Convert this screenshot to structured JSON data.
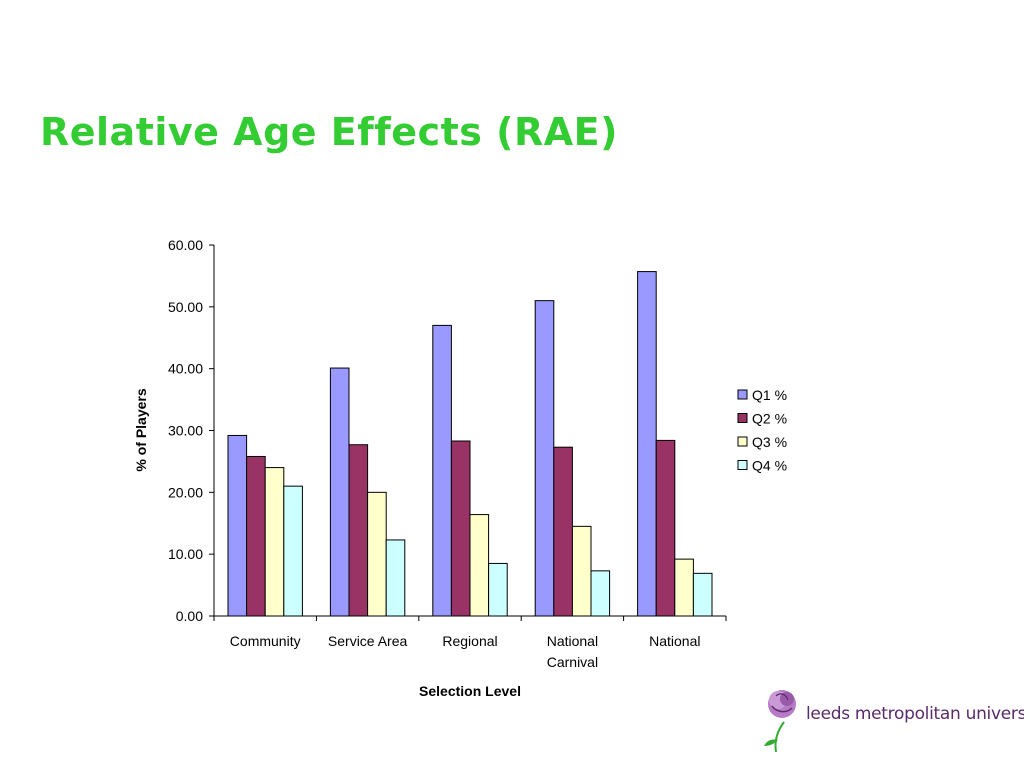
{
  "slide": {
    "title": "Relative Age Effects (RAE)"
  },
  "logo": {
    "text": "leeds metropolitan university"
  },
  "chart_data": {
    "type": "bar",
    "categories": [
      [
        "Community"
      ],
      [
        "Service Area"
      ],
      [
        "Regional"
      ],
      [
        "National",
        "Carnival"
      ],
      [
        "National"
      ]
    ],
    "series": [
      {
        "name": "Q1 %",
        "color": "#9999ff",
        "values": [
          29.2,
          40.1,
          47.0,
          51.0,
          55.7
        ]
      },
      {
        "name": "Q2 %",
        "color": "#993366",
        "values": [
          25.8,
          27.7,
          28.3,
          27.3,
          28.4
        ]
      },
      {
        "name": "Q3 %",
        "color": "#ffffcc",
        "values": [
          24.0,
          20.0,
          16.4,
          14.5,
          9.2
        ]
      },
      {
        "name": "Q4 %",
        "color": "#ccffff",
        "values": [
          21.0,
          12.3,
          8.5,
          7.3,
          6.9
        ]
      }
    ],
    "xlabel": "Selection Level",
    "ylabel": "% of Players",
    "ylim": [
      0,
      60
    ],
    "yticks": [
      "0.00",
      "10.00",
      "20.00",
      "30.00",
      "40.00",
      "50.00",
      "60.00"
    ],
    "grid": false,
    "legend": "right"
  }
}
